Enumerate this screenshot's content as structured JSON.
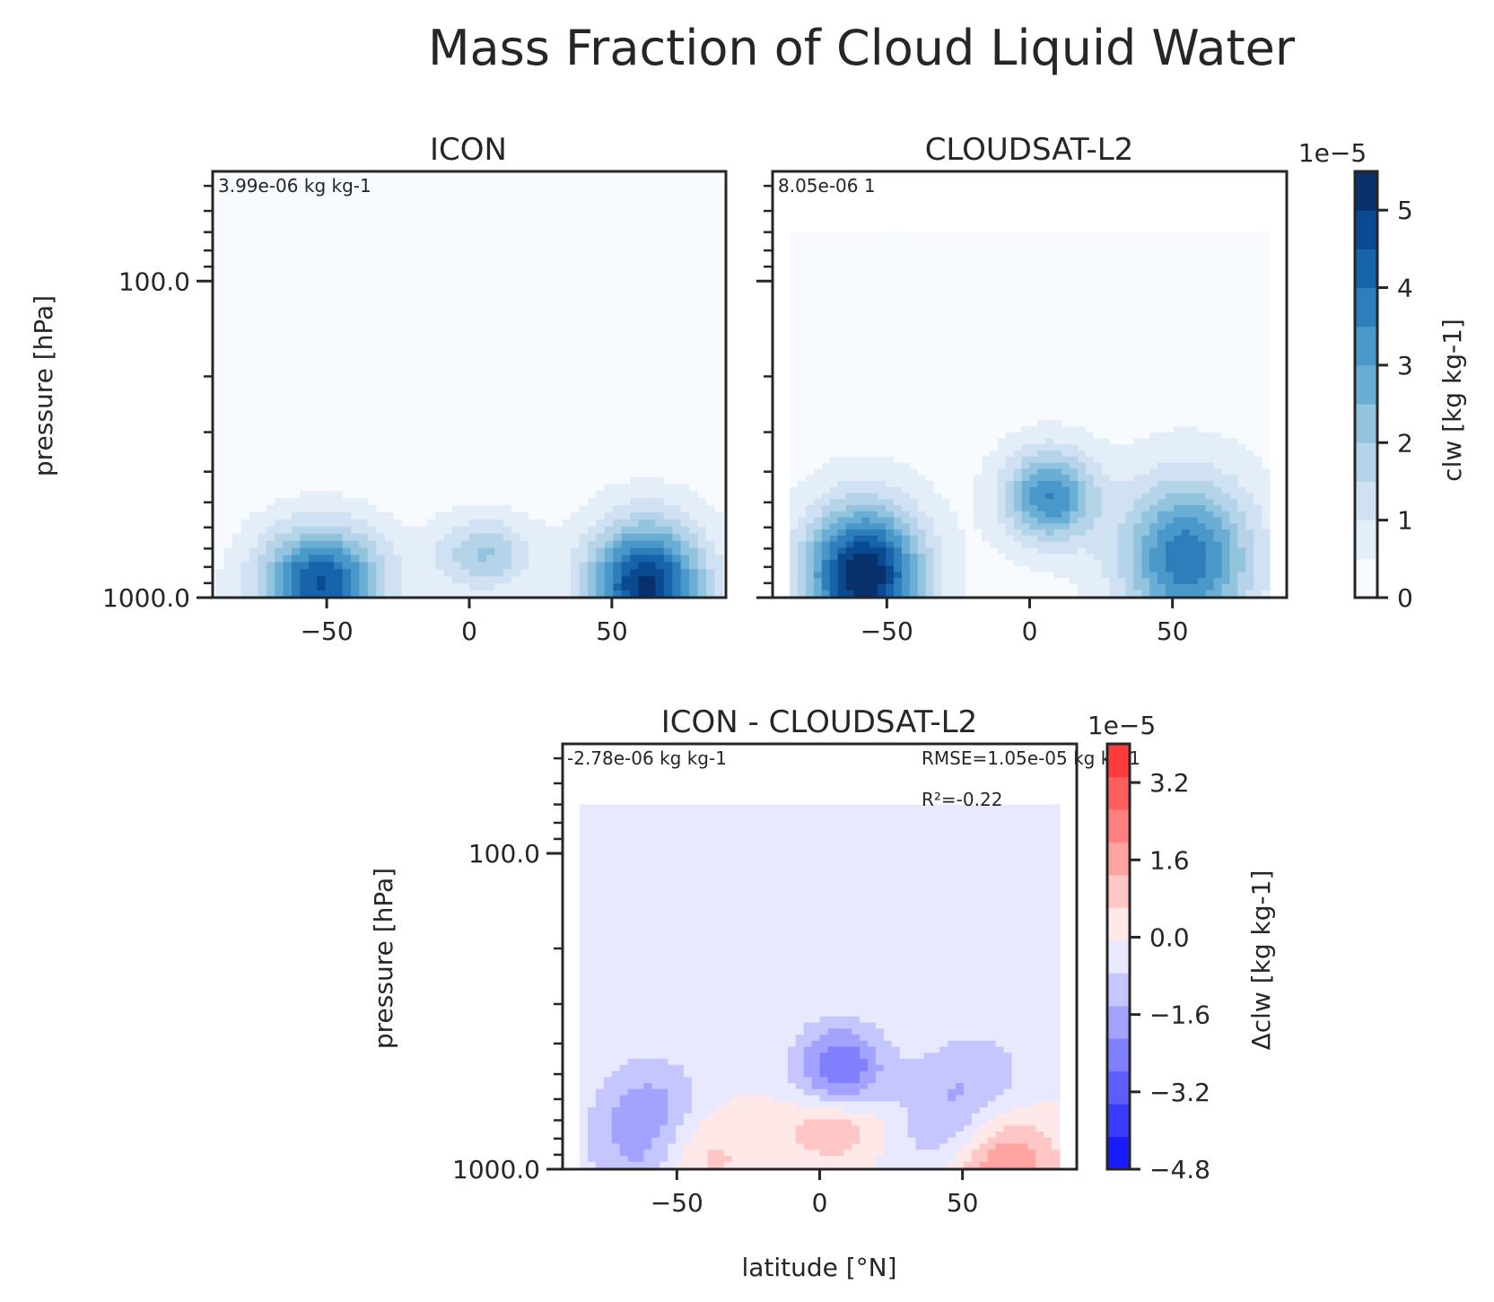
{
  "figure_title": "Mass Fraction of Cloud Liquid Water",
  "colors": {
    "axis": "#262626",
    "blues": [
      "#f7fbff",
      "#e3eef9",
      "#cfe1f2",
      "#b5d4e9",
      "#93c4de",
      "#6aaed6",
      "#4a98c9",
      "#2e7ebc",
      "#1764ab",
      "#0a4a90",
      "#08306b"
    ],
    "diff": [
      "#1a1aff",
      "#3b3bff",
      "#5e5eff",
      "#8080ff",
      "#a3a3ff",
      "#c6c6ff",
      "#e8e8ff",
      "#ffe8e8",
      "#ffc6c6",
      "#ffa3a3",
      "#ff8080",
      "#ff5e5e",
      "#ff3b3b"
    ]
  },
  "chart_data": [
    {
      "type": "heatmap",
      "title": "ICON",
      "annotation": "3.99e-06 kg kg-1",
      "ylabel": "pressure [hPa]",
      "xlabel": "",
      "x": [
        -85,
        -70,
        -60,
        -50,
        -40,
        -30,
        -20,
        -10,
        0,
        10,
        20,
        30,
        40,
        50,
        60,
        70,
        85
      ],
      "xticks": [
        -50,
        0,
        50
      ],
      "xtick_labels": [
        "−50",
        "0",
        "50"
      ],
      "yticks": [
        100,
        1000
      ],
      "ytick_labels": [
        "100.0",
        "1000.0"
      ],
      "y_scale": "log",
      "xlim": [
        -90,
        90
      ],
      "ylim": [
        1000,
        45
      ],
      "features": [
        {
          "lat": -52,
          "p": 900,
          "amp": 4.3,
          "slat": 15,
          "sp": 0.12
        },
        {
          "lat": 62,
          "p": 920,
          "amp": 4.9,
          "slat": 14,
          "sp": 0.14
        },
        {
          "lat": 5,
          "p": 730,
          "amp": 1.8,
          "slat": 12,
          "sp": 0.08
        }
      ],
      "background": 0.25
    },
    {
      "type": "heatmap",
      "title": "CLOUDSAT-L2",
      "annotation": "8.05e-06 1",
      "ylabel": "",
      "xlabel": "",
      "x": [
        -85,
        -70,
        -60,
        -50,
        -40,
        -30,
        -20,
        -10,
        0,
        10,
        20,
        30,
        40,
        50,
        60,
        70,
        85
      ],
      "xticks": [
        -50,
        0,
        50
      ],
      "xtick_labels": [
        "−50",
        "0",
        "50"
      ],
      "yticks": [
        100,
        1000
      ],
      "ytick_labels": [
        "",
        ""
      ],
      "y_scale": "log",
      "xlim": [
        -90,
        90
      ],
      "ylim": [
        1000,
        45
      ],
      "features": [
        {
          "lat": -58,
          "p": 850,
          "amp": 5.3,
          "slat": 14,
          "sp": 0.15
        },
        {
          "lat": 55,
          "p": 750,
          "amp": 3.6,
          "slat": 16,
          "sp": 0.17
        },
        {
          "lat": 7,
          "p": 480,
          "amp": 3.2,
          "slat": 11,
          "sp": 0.1
        }
      ],
      "background": 0.3,
      "colorbar": {
        "label": "clw [kg kg-1]",
        "scale_label": "1e−5",
        "ticks": [
          0,
          1,
          2,
          3,
          4,
          5
        ],
        "tick_labels": [
          "0",
          "1",
          "2",
          "3",
          "4",
          "5"
        ],
        "range": [
          0,
          5.5
        ],
        "levels": 11
      }
    },
    {
      "type": "heatmap",
      "title": "ICON - CLOUDSAT-L2",
      "annotation": "-2.78e-06 kg kg-1",
      "rmse": "RMSE=1.05e-05 kg kg-1",
      "r2": "R²=-0.22",
      "ylabel": "pressure [hPa]",
      "xlabel": "latitude [°N]",
      "x": [
        -85,
        -70,
        -60,
        -50,
        -40,
        -30,
        -20,
        -10,
        0,
        10,
        20,
        30,
        40,
        50,
        60,
        70,
        85
      ],
      "xticks": [
        -50,
        0,
        50
      ],
      "xtick_labels": [
        "−50",
        "0",
        "50"
      ],
      "yticks": [
        100,
        1000
      ],
      "ytick_labels": [
        "100.0",
        "1000.0"
      ],
      "y_scale": "log",
      "xlim": [
        -90,
        90
      ],
      "ylim": [
        1000,
        45
      ],
      "colorbar": {
        "label": "Δclw [kg kg-1]",
        "scale_label": "1e−5",
        "ticks": [
          3.2,
          1.6,
          0.0,
          -1.6,
          -3.2,
          -4.8
        ],
        "tick_labels": [
          "3.2",
          "1.6",
          "0.0",
          "−1.6",
          "−3.2",
          "−4.8"
        ],
        "range": [
          -4.8,
          4.0
        ],
        "levels": 11
      }
    }
  ]
}
